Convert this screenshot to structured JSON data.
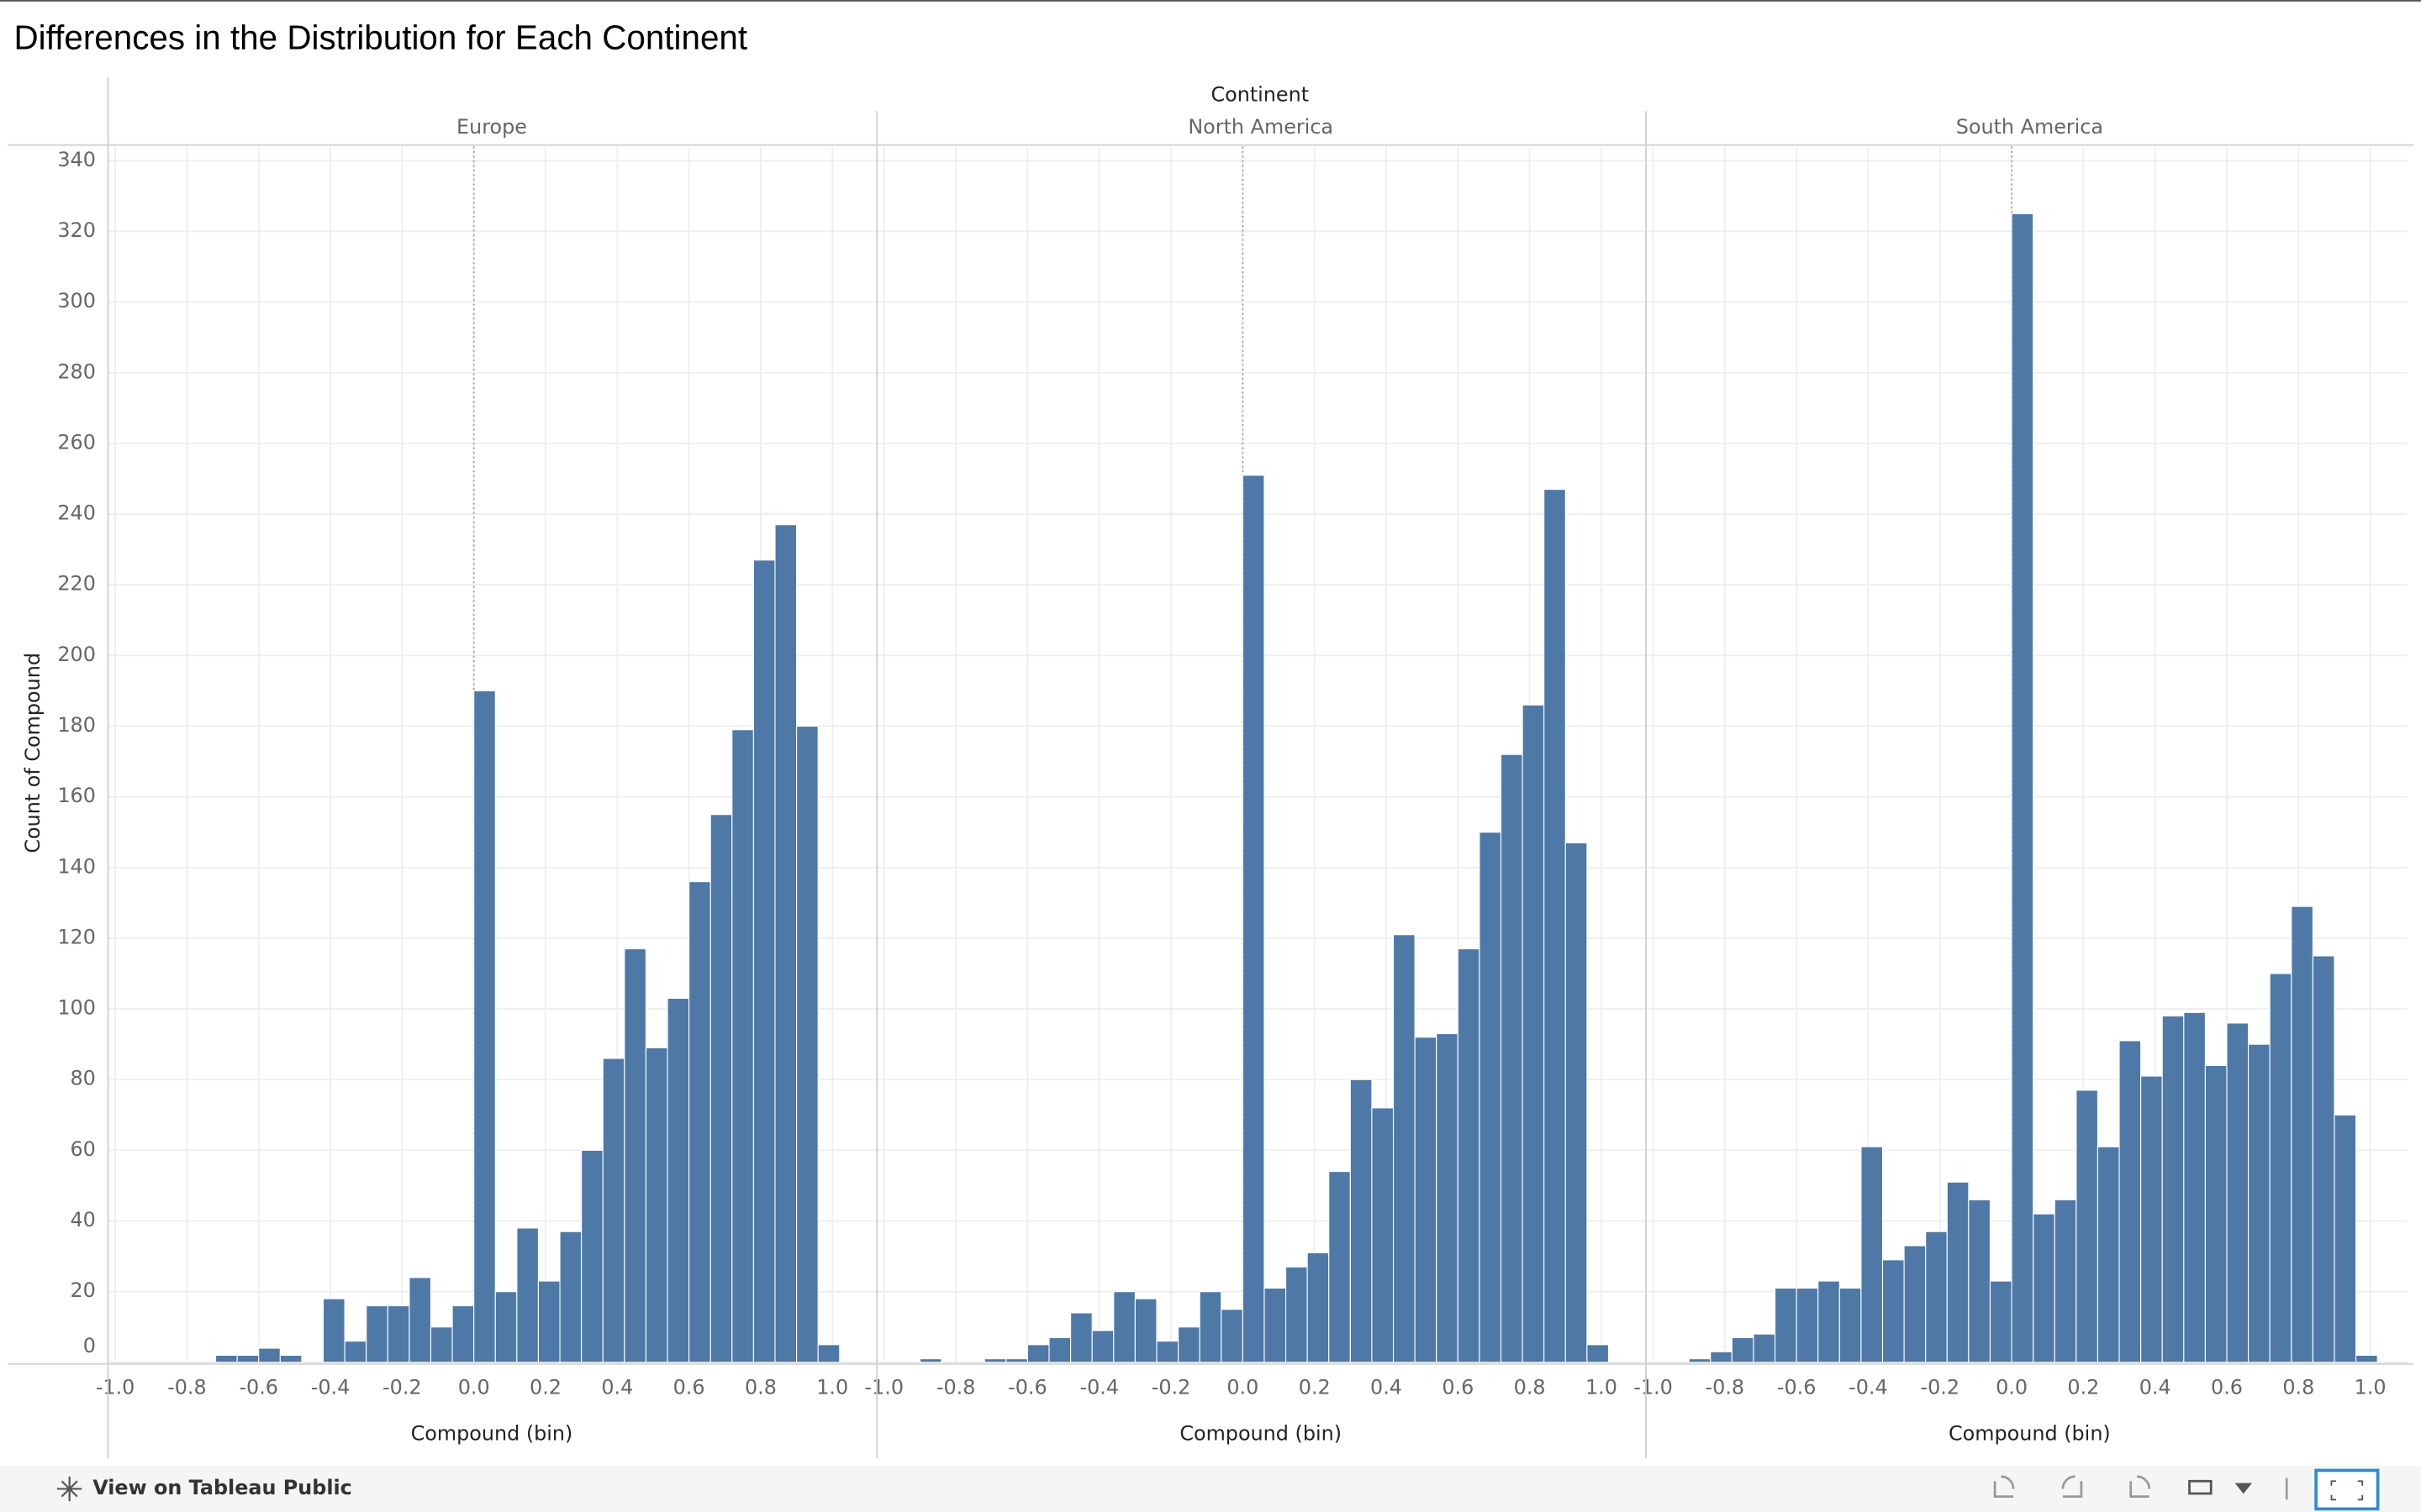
{
  "title": "Differences in the Distribution for Each Continent",
  "facet_header": "Continent",
  "y_axis": {
    "label": "Count of Compound",
    "lim": [
      0,
      344
    ],
    "ticks": [
      0,
      20,
      40,
      60,
      80,
      100,
      120,
      140,
      160,
      180,
      200,
      220,
      240,
      260,
      280,
      300,
      320,
      340
    ],
    "grid": true
  },
  "footer": {
    "link": "View on Tableau Public"
  },
  "chart_data": [
    {
      "type": "histogram",
      "title": "Europe",
      "x_label": "Compound (bin)",
      "color": "#4e79a7",
      "zero_line": true,
      "xlim": [
        -1.02,
        1.12
      ],
      "xticks": [
        {
          "value": -1,
          "label": "-1.0"
        },
        -0.8,
        -0.6,
        -0.4,
        -0.2,
        {
          "value": 0,
          "label": "0.0"
        },
        0.2,
        0.4,
        0.6,
        0.8,
        {
          "value": 1,
          "label": "1.0"
        }
      ],
      "bins": [
        -1.02,
        -0.96,
        -0.9,
        -0.84,
        -0.78,
        -0.72,
        -0.66,
        -0.6,
        -0.54,
        -0.48,
        -0.42,
        -0.36,
        -0.3,
        -0.24,
        -0.18,
        -0.12,
        -0.06,
        0,
        0.06,
        0.12,
        0.18,
        0.24,
        0.3,
        0.36,
        0.42,
        0.48,
        0.54,
        0.6,
        0.66,
        0.72,
        0.78,
        0.84,
        0.9,
        0.96,
        1.02
      ],
      "values": [
        0,
        0,
        0,
        0,
        0,
        2,
        2,
        4,
        2,
        0,
        18,
        6,
        16,
        16,
        24,
        10,
        16,
        190,
        20,
        38,
        23,
        37,
        60,
        86,
        117,
        89,
        103,
        136,
        155,
        179,
        227,
        237,
        180,
        5
      ]
    },
    {
      "type": "histogram",
      "title": "North America",
      "x_label": "Compound (bin)",
      "color": "#4e79a7",
      "zero_line": true,
      "xlim": [
        -1.02,
        1.12
      ],
      "xticks": [
        {
          "value": -1,
          "label": "-1.0"
        },
        -0.8,
        -0.6,
        -0.4,
        -0.2,
        {
          "value": 0,
          "label": "0.0"
        },
        0.2,
        0.4,
        0.6,
        0.8,
        {
          "value": 1,
          "label": "1.0"
        }
      ],
      "bins": [
        -1.02,
        -0.96,
        -0.9,
        -0.84,
        -0.78,
        -0.72,
        -0.66,
        -0.6,
        -0.54,
        -0.48,
        -0.42,
        -0.36,
        -0.3,
        -0.24,
        -0.18,
        -0.12,
        -0.06,
        0,
        0.06,
        0.12,
        0.18,
        0.24,
        0.3,
        0.36,
        0.42,
        0.48,
        0.54,
        0.6,
        0.66,
        0.72,
        0.78,
        0.84,
        0.9,
        0.96,
        1.02
      ],
      "values": [
        0,
        0,
        1,
        0,
        0,
        1,
        1,
        5,
        7,
        14,
        9,
        20,
        18,
        6,
        10,
        20,
        15,
        251,
        21,
        27,
        31,
        54,
        80,
        72,
        121,
        92,
        93,
        117,
        150,
        172,
        186,
        247,
        147,
        5
      ]
    },
    {
      "type": "histogram",
      "title": "South America",
      "x_label": "Compound (bin)",
      "color": "#4e79a7",
      "zero_line": true,
      "xlim": [
        -1.02,
        1.12
      ],
      "xticks": [
        {
          "value": -1,
          "label": "-1.0"
        },
        -0.8,
        -0.6,
        -0.4,
        -0.2,
        {
          "value": 0,
          "label": "0.0"
        },
        0.2,
        0.4,
        0.6,
        0.8,
        {
          "value": 1,
          "label": "1.0"
        }
      ],
      "bins": [
        -1.02,
        -0.96,
        -0.9,
        -0.84,
        -0.78,
        -0.72,
        -0.66,
        -0.6,
        -0.54,
        -0.48,
        -0.42,
        -0.36,
        -0.3,
        -0.24,
        -0.18,
        -0.12,
        -0.06,
        0,
        0.06,
        0.12,
        0.18,
        0.24,
        0.3,
        0.36,
        0.42,
        0.48,
        0.54,
        0.6,
        0.66,
        0.72,
        0.78,
        0.84,
        0.9,
        0.96,
        1.02
      ],
      "values": [
        0,
        0,
        1,
        3,
        7,
        8,
        21,
        21,
        23,
        21,
        61,
        29,
        33,
        37,
        51,
        46,
        23,
        325,
        42,
        46,
        77,
        61,
        91,
        81,
        98,
        99,
        84,
        96,
        90,
        110,
        129,
        115,
        70,
        2
      ]
    }
  ]
}
